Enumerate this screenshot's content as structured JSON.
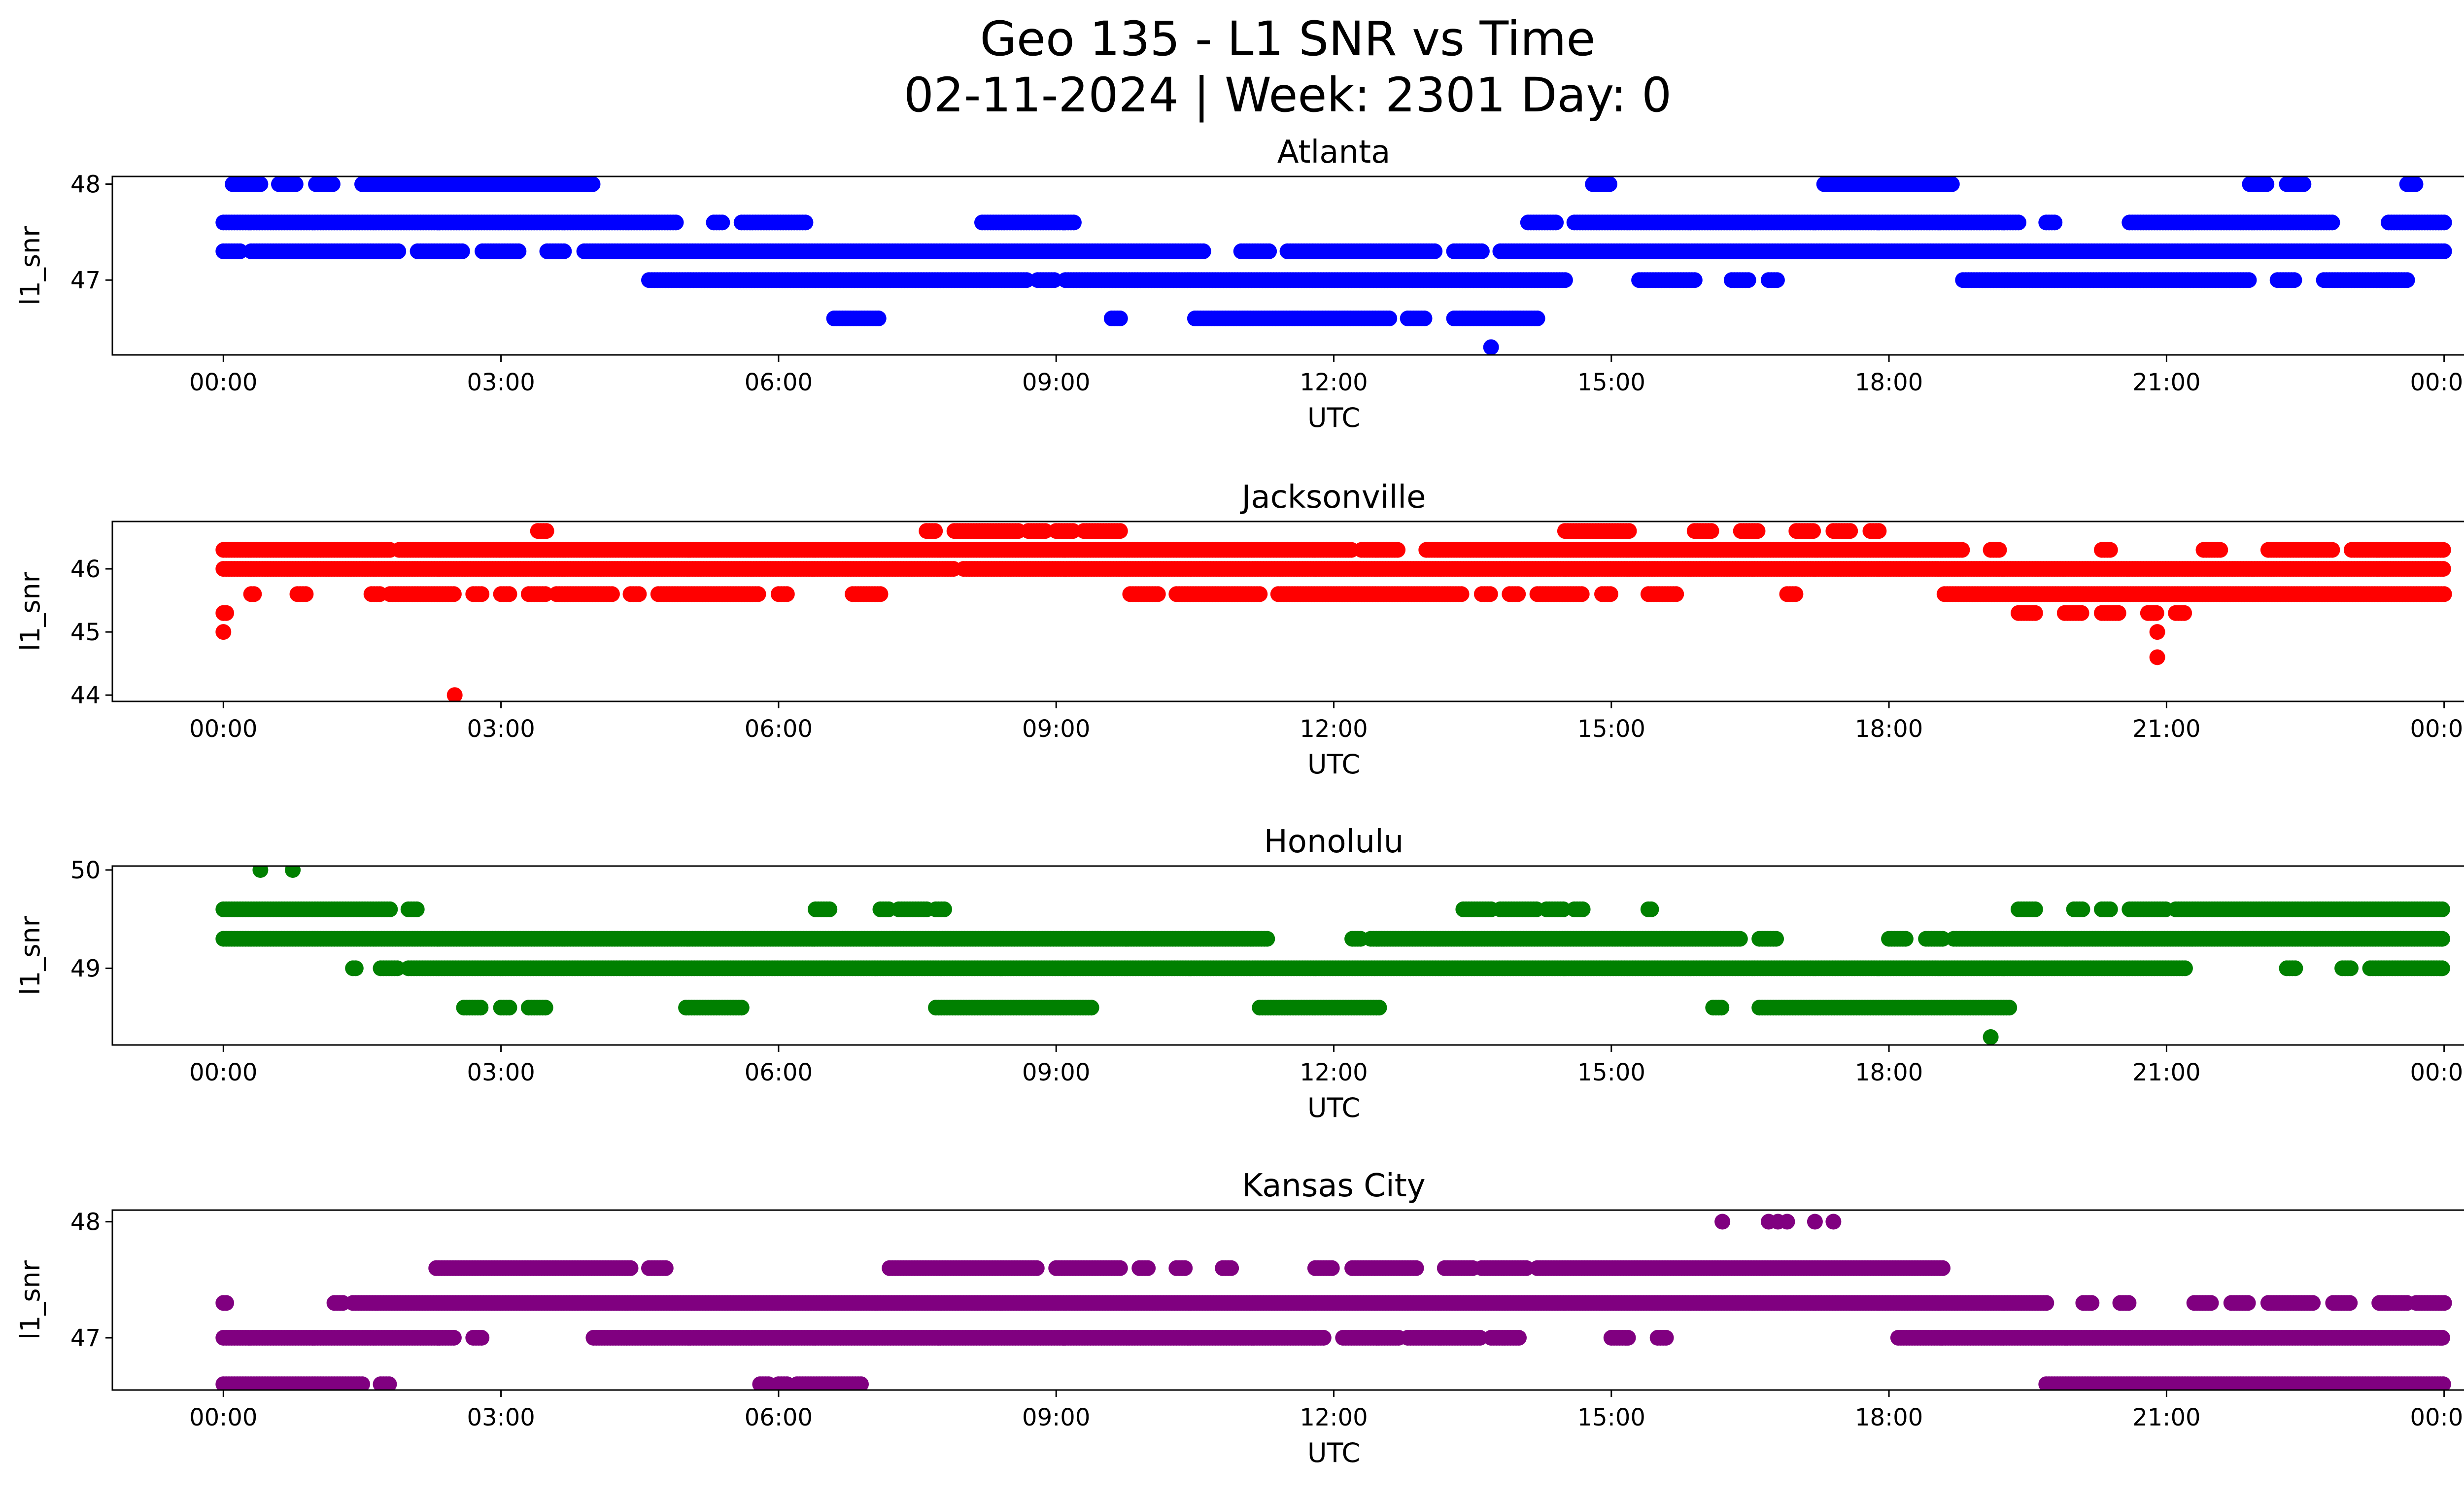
{
  "figure": {
    "title_line1": "Geo 135 - L1 SNR vs Time",
    "title_line2": "02-11-2024 | Week: 2301 Day: 0"
  },
  "chart_data": [
    {
      "type": "scatter",
      "title": "Atlanta",
      "xlabel": "UTC",
      "ylabel": "l1_snr",
      "color": "#0000ff",
      "xlim_hours": [
        -1.2,
        25.2
      ],
      "ylim": [
        46.22,
        48.08
      ],
      "x_ticks": [
        "00:00",
        "03:00",
        "06:00",
        "09:00",
        "12:00",
        "15:00",
        "18:00",
        "21:00",
        "00:00"
      ],
      "y_ticks": [
        47,
        48
      ],
      "levels": [
        {
          "y": 48.0,
          "segments": [
            [
              0.1,
              0.4
            ],
            [
              0.6,
              0.8
            ],
            [
              1.0,
              1.2
            ],
            [
              1.5,
              4.0
            ],
            [
              14.8,
              15.0
            ],
            [
              17.3,
              18.7
            ],
            [
              21.9,
              22.1
            ],
            [
              22.3,
              22.5
            ],
            [
              23.6,
              23.7
            ]
          ]
        },
        {
          "y": 47.6,
          "segments": [
            [
              0.0,
              4.9
            ],
            [
              5.3,
              5.4
            ],
            [
              5.6,
              6.3
            ],
            [
              8.2,
              9.2
            ],
            [
              14.1,
              14.4
            ],
            [
              14.6,
              19.4
            ],
            [
              19.7,
              19.8
            ],
            [
              20.6,
              22.8
            ],
            [
              23.4,
              24.0
            ]
          ]
        },
        {
          "y": 47.3,
          "segments": [
            [
              0.0,
              0.2
            ],
            [
              0.3,
              1.9
            ],
            [
              2.1,
              2.6
            ],
            [
              2.8,
              3.2
            ],
            [
              3.5,
              3.7
            ],
            [
              3.9,
              10.6
            ],
            [
              11.0,
              11.3
            ],
            [
              11.5,
              13.1
            ],
            [
              13.3,
              13.6
            ],
            [
              13.8,
              24.0
            ]
          ]
        },
        {
          "y": 47.0,
          "segments": [
            [
              4.6,
              8.7
            ],
            [
              8.8,
              9.0
            ],
            [
              9.1,
              14.5
            ],
            [
              15.3,
              15.9
            ],
            [
              16.3,
              16.5
            ],
            [
              16.7,
              16.8
            ],
            [
              18.8,
              21.9
            ],
            [
              22.2,
              22.4
            ],
            [
              22.7,
              23.6
            ]
          ]
        },
        {
          "y": 46.6,
          "segments": [
            [
              6.6,
              7.1
            ],
            [
              9.6,
              9.7
            ],
            [
              10.5,
              12.6
            ],
            [
              12.8,
              13.0
            ],
            [
              13.3,
              14.2
            ]
          ]
        },
        {
          "y": 46.3,
          "points": [
            13.7
          ]
        }
      ]
    },
    {
      "type": "scatter",
      "title": "Jacksonville",
      "xlabel": "UTC",
      "ylabel": "l1_snr",
      "color": "#ff0000",
      "xlim_hours": [
        -1.2,
        25.2
      ],
      "ylim": [
        43.9,
        46.75
      ],
      "x_ticks": [
        "00:00",
        "03:00",
        "06:00",
        "09:00",
        "12:00",
        "15:00",
        "18:00",
        "21:00",
        "00:00"
      ],
      "y_ticks": [
        44,
        45,
        46
      ],
      "levels": [
        {
          "y": 46.6,
          "segments": [
            [
              3.4,
              3.5
            ],
            [
              7.6,
              7.7
            ],
            [
              7.9,
              8.6
            ],
            [
              8.7,
              8.9
            ],
            [
              9.0,
              9.2
            ],
            [
              9.3,
              9.7
            ],
            [
              14.5,
              15.2
            ],
            [
              15.9,
              16.1
            ],
            [
              16.4,
              16.6
            ],
            [
              17.0,
              17.2
            ],
            [
              17.4,
              17.6
            ],
            [
              17.8,
              17.9
            ]
          ]
        },
        {
          "y": 46.3,
          "segments": [
            [
              0.0,
              1.8
            ],
            [
              1.9,
              12.2
            ],
            [
              12.3,
              12.7
            ],
            [
              13.0,
              18.8
            ],
            [
              19.1,
              19.2
            ],
            [
              20.3,
              20.4
            ],
            [
              21.4,
              21.6
            ],
            [
              22.1,
              22.8
            ],
            [
              23.0,
              24.0
            ]
          ]
        },
        {
          "y": 46.0,
          "segments": [
            [
              0.0,
              7.9
            ],
            [
              8.0,
              24.0
            ]
          ]
        },
        {
          "y": 45.6,
          "segments": [
            [
              0.3,
              0.35
            ],
            [
              0.8,
              0.9
            ],
            [
              1.6,
              1.7
            ],
            [
              1.8,
              2.5
            ],
            [
              2.7,
              2.8
            ],
            [
              3.0,
              3.1
            ],
            [
              3.3,
              3.5
            ],
            [
              3.6,
              4.2
            ],
            [
              4.4,
              4.5
            ],
            [
              4.7,
              5.8
            ],
            [
              6.0,
              6.1
            ],
            [
              6.8,
              7.1
            ],
            [
              9.8,
              10.1
            ],
            [
              10.3,
              11.2
            ],
            [
              11.4,
              13.4
            ],
            [
              13.6,
              13.7
            ],
            [
              13.9,
              14.0
            ],
            [
              14.2,
              14.7
            ],
            [
              14.9,
              15.0
            ],
            [
              15.4,
              15.7
            ],
            [
              16.9,
              17.0
            ],
            [
              18.6,
              24.0
            ]
          ]
        },
        {
          "y": 45.3,
          "segments": [
            [
              0.0,
              0.05
            ],
            [
              19.4,
              19.6
            ],
            [
              19.9,
              20.1
            ],
            [
              20.3,
              20.5
            ],
            [
              20.8,
              20.9
            ],
            [
              21.1,
              21.2
            ]
          ]
        },
        {
          "y": 45.0,
          "points": [
            0.0,
            20.9
          ]
        },
        {
          "y": 44.6,
          "points": [
            20.9
          ]
        },
        {
          "y": 44.0,
          "points": [
            2.5
          ]
        }
      ]
    },
    {
      "type": "scatter",
      "title": "Honolulu",
      "xlabel": "UTC",
      "ylabel": "l1_snr",
      "color": "#008000",
      "xlim_hours": [
        -1.2,
        25.2
      ],
      "ylim": [
        48.22,
        50.04
      ],
      "x_ticks": [
        "00:00",
        "03:00",
        "06:00",
        "09:00",
        "12:00",
        "15:00",
        "18:00",
        "21:00",
        "00:00"
      ],
      "y_ticks": [
        49,
        50
      ],
      "levels": [
        {
          "y": 50.0,
          "points": [
            0.4,
            0.75
          ]
        },
        {
          "y": 49.6,
          "segments": [
            [
              0.0,
              1.8
            ],
            [
              2.0,
              2.1
            ],
            [
              6.4,
              6.55
            ],
            [
              7.1,
              7.2
            ],
            [
              7.3,
              7.6
            ],
            [
              7.7,
              7.8
            ],
            [
              13.4,
              13.7
            ],
            [
              13.8,
              14.2
            ],
            [
              14.3,
              14.5
            ],
            [
              14.6,
              14.7
            ],
            [
              15.4,
              15.45
            ],
            [
              19.4,
              19.6
            ],
            [
              20.0,
              20.1
            ],
            [
              20.3,
              20.4
            ],
            [
              20.6,
              21.0
            ],
            [
              21.1,
              24.0
            ]
          ]
        },
        {
          "y": 49.3,
          "segments": [
            [
              0.0,
              11.3
            ],
            [
              12.2,
              12.3
            ],
            [
              12.4,
              16.4
            ],
            [
              16.6,
              16.8
            ],
            [
              18.0,
              18.2
            ],
            [
              18.4,
              18.6
            ],
            [
              18.7,
              24.0
            ]
          ]
        },
        {
          "y": 49.0,
          "segments": [
            [
              1.4,
              1.45
            ],
            [
              1.7,
              1.9
            ],
            [
              2.0,
              21.2
            ],
            [
              22.3,
              22.4
            ],
            [
              22.9,
              23.0
            ],
            [
              23.2,
              24.0
            ]
          ]
        },
        {
          "y": 48.6,
          "segments": [
            [
              2.6,
              2.8
            ],
            [
              3.0,
              3.1
            ],
            [
              3.3,
              3.5
            ],
            [
              5.0,
              5.6
            ],
            [
              7.7,
              9.4
            ],
            [
              11.2,
              12.5
            ],
            [
              16.1,
              16.2
            ],
            [
              16.6,
              19.3
            ]
          ]
        },
        {
          "y": 48.3,
          "points": [
            19.1
          ]
        }
      ]
    },
    {
      "type": "scatter",
      "title": "Kansas City",
      "xlabel": "UTC",
      "ylabel": "l1_snr",
      "color": "#800080",
      "xlim_hours": [
        -1.2,
        25.2
      ],
      "ylim": [
        46.55,
        48.1
      ],
      "x_ticks": [
        "00:00",
        "03:00",
        "06:00",
        "09:00",
        "12:00",
        "15:00",
        "18:00",
        "21:00",
        "00:00"
      ],
      "y_ticks": [
        47,
        48
      ],
      "levels": [
        {
          "y": 48.0,
          "points": [
            16.2,
            16.7,
            16.8,
            16.9,
            17.2,
            17.4
          ]
        },
        {
          "y": 47.6,
          "segments": [
            [
              2.3,
              4.4
            ],
            [
              4.6,
              4.8
            ],
            [
              7.2,
              8.8
            ],
            [
              9.0,
              9.7
            ],
            [
              9.9,
              10.0
            ],
            [
              10.3,
              10.4
            ],
            [
              10.8,
              10.9
            ],
            [
              11.8,
              12.0
            ],
            [
              12.2,
              12.9
            ],
            [
              13.2,
              13.5
            ],
            [
              13.6,
              14.1
            ],
            [
              14.2,
              18.6
            ]
          ]
        },
        {
          "y": 47.3,
          "segments": [
            [
              0.0,
              0.05
            ],
            [
              1.2,
              1.3
            ],
            [
              1.4,
              19.7
            ],
            [
              20.1,
              20.2
            ],
            [
              20.5,
              20.6
            ],
            [
              21.3,
              21.5
            ],
            [
              21.7,
              21.9
            ],
            [
              22.1,
              22.6
            ],
            [
              22.8,
              23.0
            ],
            [
              23.3,
              23.6
            ],
            [
              23.7,
              24.0
            ]
          ]
        },
        {
          "y": 47.0,
          "segments": [
            [
              0.0,
              2.5
            ],
            [
              2.7,
              2.8
            ],
            [
              4.0,
              11.9
            ],
            [
              12.1,
              12.7
            ],
            [
              12.8,
              13.6
            ],
            [
              13.7,
              14.0
            ],
            [
              15.0,
              15.2
            ],
            [
              15.5,
              15.6
            ],
            [
              18.1,
              24.0
            ]
          ]
        },
        {
          "y": 46.6,
          "segments": [
            [
              0.0,
              1.5
            ],
            [
              1.7,
              1.8
            ],
            [
              5.8,
              5.9
            ],
            [
              6.0,
              6.1
            ],
            [
              6.2,
              6.9
            ],
            [
              19.7,
              24.0
            ]
          ]
        }
      ]
    }
  ]
}
